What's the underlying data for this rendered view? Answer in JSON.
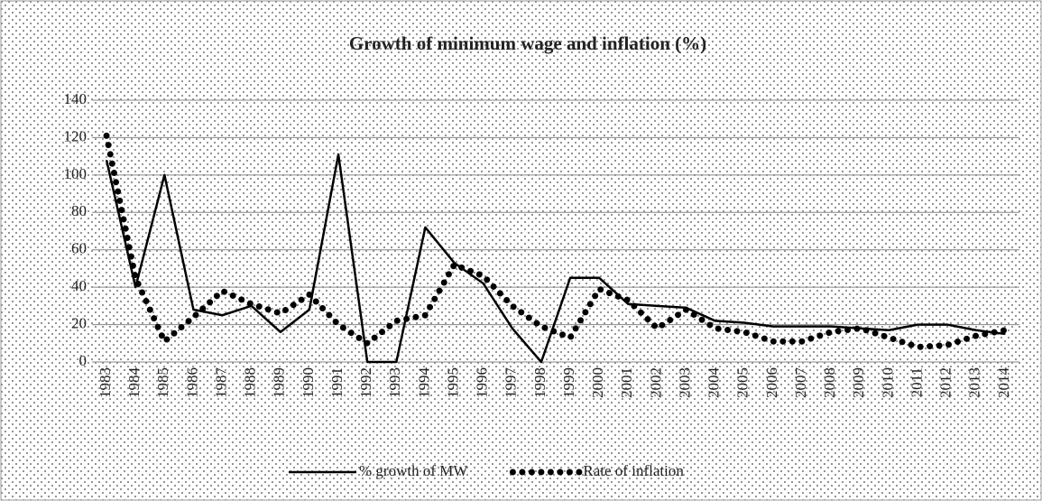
{
  "chart_data": {
    "type": "line",
    "title": "Growth of minimum wage and inflation (%)",
    "categories": [
      "1983",
      "1984",
      "1985",
      "1986",
      "1987",
      "1988",
      "1989",
      "1990",
      "1991",
      "1992",
      "1993",
      "1994",
      "1995",
      "1996",
      "1997",
      "1998",
      "1999",
      "2000",
      "2001",
      "2002",
      "2003",
      "2004",
      "2005",
      "2006",
      "2007",
      "2008",
      "2009",
      "2010",
      "2011",
      "2012",
      "2013",
      "2014"
    ],
    "series": [
      {
        "name": "% growth of MW",
        "color": "#000000",
        "style": "solid",
        "values": [
          108,
          40,
          100,
          28,
          25,
          30,
          16,
          28,
          111,
          0,
          0,
          72,
          53,
          42,
          18,
          0,
          45,
          45,
          31,
          30,
          29,
          22,
          21,
          19,
          19,
          19,
          18,
          17,
          20,
          20,
          17,
          15
        ]
      },
      {
        "name": "Rate of inflation",
        "color": "#000000",
        "style": "dotted",
        "values": [
          121,
          45,
          11,
          24,
          38,
          31,
          26,
          36,
          20,
          10,
          22,
          25,
          52,
          46,
          30,
          19,
          13,
          39,
          33,
          18,
          28,
          18,
          16,
          11,
          11,
          16,
          18,
          13,
          8,
          9,
          14,
          17
        ]
      }
    ],
    "ylim": [
      0,
      140
    ],
    "yticks": [
      0,
      20,
      40,
      60,
      80,
      100,
      120,
      140
    ],
    "grid": true,
    "legend": "bottom"
  }
}
